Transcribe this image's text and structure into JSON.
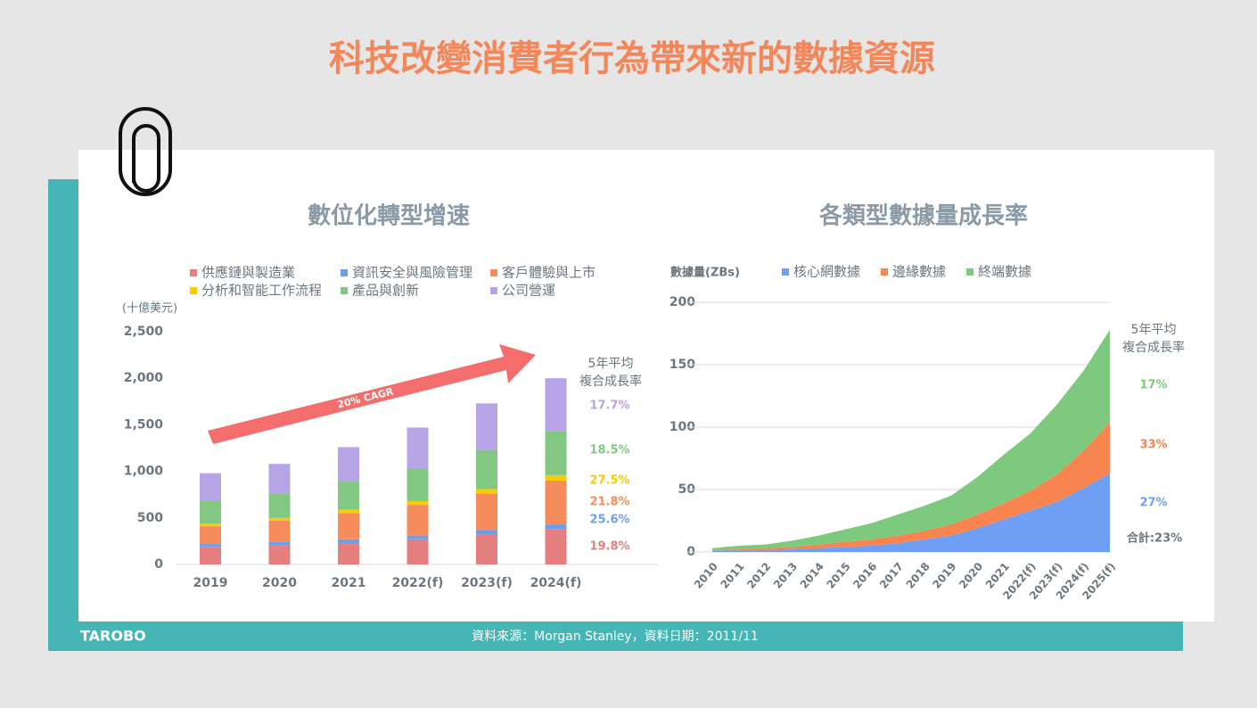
{
  "title": "科技改變消費者行為帶來新的數據資源",
  "footer": "資料來源：Morgan Stanley，資料日期：2011/11",
  "logo": "TAROBO",
  "chart_data": [
    {
      "type": "bar",
      "stacked": true,
      "title": "數位化轉型增速",
      "y_label": "(十億美元)",
      "annotation": "20% CAGR",
      "cagr_title": [
        "5年平均",
        "複合成長率"
      ],
      "categories": [
        "2019",
        "2020",
        "2021",
        "2022(f)",
        "2023(f)",
        "2024(f)"
      ],
      "ylim": [
        0,
        2500
      ],
      "yticks": [
        0,
        500,
        {
          "value": 1000,
          "label": "1,000"
        },
        {
          "value": 1500,
          "label": "1,500"
        },
        {
          "value": 2000,
          "label": "2,000"
        },
        {
          "value": 2500,
          "label": "2,500"
        }
      ],
      "series": [
        {
          "name": "供應鏈與製造業",
          "color": "#e57f7f",
          "values": [
            190,
            210,
            230,
            270,
            320,
            380
          ],
          "cagr": "19.8%"
        },
        {
          "name": "資訊安全與風險管理",
          "color": "#6d9eeb",
          "values": [
            30,
            30,
            40,
            40,
            50,
            50
          ],
          "cagr": "25.6%"
        },
        {
          "name": "客戶體驗與上市",
          "color": "#f68c5c",
          "values": [
            190,
            230,
            280,
            330,
            390,
            470
          ],
          "cagr": "21.8%"
        },
        {
          "name": "分析和智能工作流程",
          "color": "#f5cd00",
          "values": [
            30,
            30,
            40,
            40,
            50,
            60
          ],
          "cagr": "27.5%"
        },
        {
          "name": "產品與創新",
          "color": "#82c882",
          "values": [
            240,
            260,
            300,
            350,
            420,
            470
          ],
          "cagr": "18.5%"
        },
        {
          "name": "公司營運",
          "color": "#b6a4e6",
          "values": [
            300,
            320,
            370,
            440,
            500,
            570
          ],
          "cagr": "17.7%"
        }
      ]
    },
    {
      "type": "area",
      "stacked": true,
      "title": "各類型數據量成長率",
      "y_label": "數據量(ZBs)",
      "cagr_title": [
        "5年平均",
        "複合成長率"
      ],
      "total_cagr": "合計:23%",
      "categories": [
        "2010",
        "2011",
        "2012",
        "2013",
        "2014",
        "2015",
        "2016",
        "2017",
        "2018",
        "2019",
        "2020",
        "2021",
        "2022(f)",
        "2023(f)",
        "2024(f)",
        "2025(f)"
      ],
      "ylim": [
        0,
        200
      ],
      "yticks": [
        0,
        50,
        100,
        150,
        200
      ],
      "grid": true,
      "series": [
        {
          "name": "核心網數據",
          "color": "#6f9ff5",
          "values": [
            1,
            1,
            1.5,
            2,
            3,
            4,
            5,
            7,
            10,
            13,
            19,
            26,
            33,
            40,
            51,
            63
          ],
          "cagr": "27%"
        },
        {
          "name": "邊緣數據",
          "color": "#f8844f",
          "values": [
            0.5,
            1,
            1.5,
            2,
            3,
            4,
            5,
            6,
            7,
            9,
            11,
            13,
            16,
            22,
            30,
            41
          ],
          "cagr": "33%"
        },
        {
          "name": "終端數據",
          "color": "#7dc97d",
          "values": [
            1.5,
            3,
            3,
            5,
            7,
            10,
            13,
            17,
            20,
            23,
            30,
            39,
            46,
            56,
            64,
            74
          ],
          "cagr": "17%"
        }
      ]
    }
  ]
}
